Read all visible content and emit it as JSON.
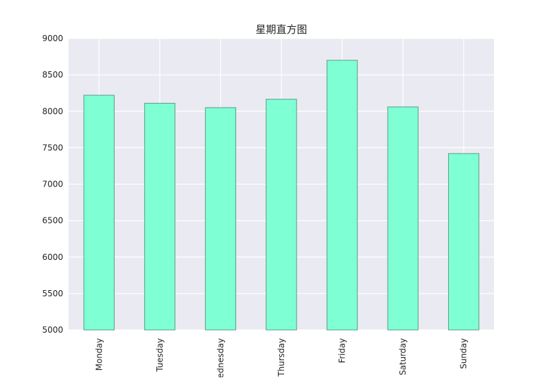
{
  "chart_data": {
    "type": "bar",
    "title": "星期直方图",
    "categories": [
      "Monday",
      "Tuesday",
      "Wednesday",
      "Thursday",
      "Friday",
      "Saturday",
      "Sunday"
    ],
    "values": [
      8220,
      8110,
      8050,
      8165,
      8700,
      8060,
      7420
    ],
    "ylim": [
      5000,
      9000
    ],
    "yticks": [
      5000,
      5500,
      6000,
      6500,
      7000,
      7500,
      8000,
      8500,
      9000
    ],
    "grid": true,
    "legend": "none",
    "colors": {
      "bar_fill": "#7fffd4",
      "bar_edge": "#5a9a82",
      "plot_background": "#eaeaf2",
      "grid": "#ffffff"
    }
  }
}
